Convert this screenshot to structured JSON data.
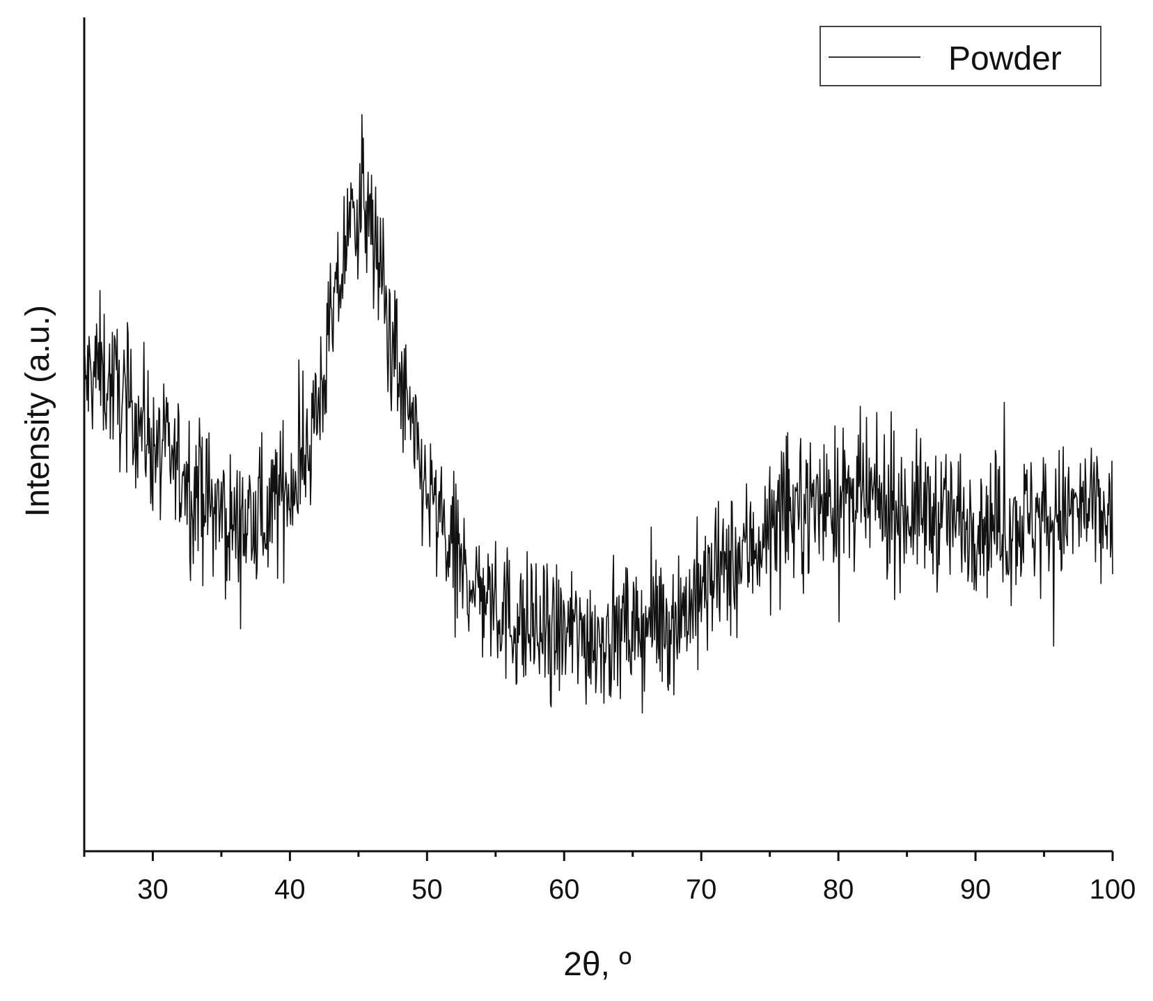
{
  "chart_data": {
    "type": "line",
    "xlabel": "2θ, º",
    "ylabel": "Intensity (a.u.)",
    "xlim": [
      25,
      100
    ],
    "ylim": [
      0,
      100
    ],
    "x_major_ticks": [
      30,
      40,
      50,
      60,
      70,
      80,
      90,
      100
    ],
    "x_minor_step": 5,
    "y_ticks_shown": false,
    "grid": false,
    "legend": {
      "position": "top-right",
      "entries": [
        "Powder"
      ]
    },
    "line_color": "#111111",
    "series": [
      {
        "name": "Powder",
        "noise_amplitude": 6,
        "x": [
          25,
          26,
          27,
          28,
          29,
          30,
          31,
          32,
          33,
          34,
          35,
          36,
          37,
          38,
          39,
          40,
          41,
          42,
          42.5,
          43,
          43.5,
          44,
          44.5,
          45,
          45.5,
          46,
          46.5,
          47,
          48,
          49,
          50,
          51,
          52,
          53,
          54,
          55,
          56,
          57,
          58,
          59,
          60,
          62,
          64,
          66,
          68,
          70,
          72,
          74,
          76,
          78,
          80,
          82,
          84,
          86,
          88,
          90,
          92,
          94,
          96,
          98,
          100
        ],
        "y": [
          56,
          58,
          56,
          54,
          52,
          49,
          47,
          46,
          44,
          42,
          40,
          39,
          39,
          40,
          42,
          44,
          47,
          53,
          58,
          62,
          67,
          72,
          76,
          78,
          77,
          74,
          70,
          65,
          57,
          49,
          43,
          39,
          35,
          33,
          31,
          30,
          28,
          27,
          26,
          26,
          26,
          26,
          26,
          27,
          28,
          31,
          34,
          37,
          40,
          42,
          42,
          42,
          41,
          41,
          40,
          40,
          39,
          40,
          40,
          41,
          40
        ]
      }
    ]
  }
}
